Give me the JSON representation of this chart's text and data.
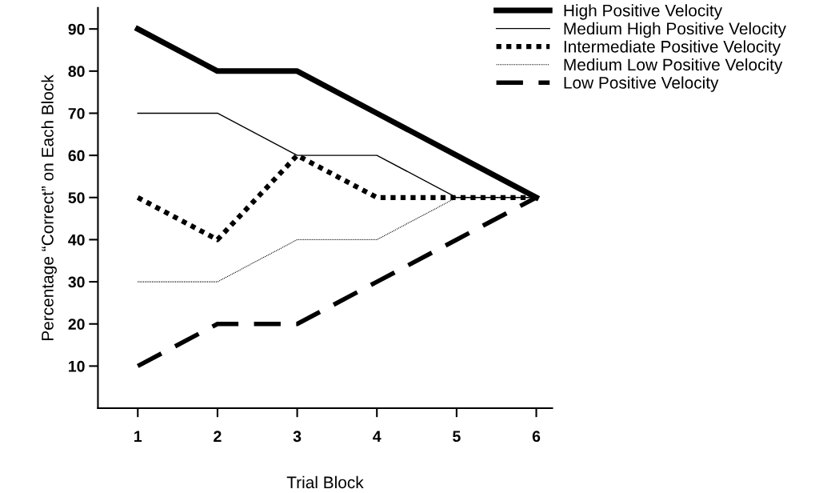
{
  "chart_data": {
    "type": "line",
    "xlabel": "Trial Block",
    "ylabel": "Percentage “Correct” on Each Block",
    "x": [
      1,
      2,
      3,
      4,
      5,
      6
    ],
    "xlim": [
      0.5,
      6.2
    ],
    "xticks": [
      1,
      2,
      3,
      4,
      5,
      6
    ],
    "ylim": [
      0,
      95
    ],
    "yticks": [
      10,
      20,
      30,
      40,
      50,
      60,
      70,
      80,
      90
    ],
    "grid": false,
    "legend": "top right",
    "marker": "none",
    "series": [
      {
        "name": "High Positive Velocity",
        "color": "#000000",
        "line_style": "solid",
        "values": [
          90,
          80,
          80,
          70,
          60,
          50
        ]
      },
      {
        "name": "Medium High Positive Velocity",
        "color": "#000000",
        "line_style": "solid",
        "values": [
          70,
          70,
          60,
          60,
          50,
          50
        ]
      },
      {
        "name": "Intermediate Positive Velocity",
        "color": "#000000",
        "line_style": "dotted",
        "values": [
          50,
          40,
          60,
          50,
          50,
          50
        ]
      },
      {
        "name": "Medium Low Positive Velocity",
        "color": "#000000",
        "line_style": "dotted",
        "values": [
          30,
          30,
          40,
          40,
          50,
          50
        ]
      },
      {
        "name": "Low Positive Velocity",
        "color": "#000000",
        "line_style": "dashed",
        "values": [
          10,
          20,
          20,
          30,
          40,
          50
        ]
      }
    ]
  }
}
